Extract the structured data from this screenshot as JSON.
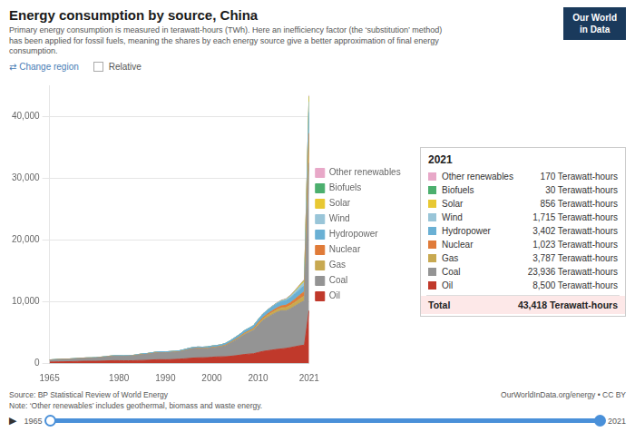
{
  "chart_data": {
    "type": "area",
    "stacked": true,
    "title": "Energy consumption by source, China",
    "subtitle": "Primary energy consumption is measured in terawatt-hours (TWh). Here an inefficiency factor (the ‘substitution’ method)\nhas been applied for fossil fuels, meaning the shares by each energy source give a better approximation of final energy\nconsumption.",
    "logo_text": "Our World\nin Data",
    "controls": [
      "⇄ Change region",
      "Relative"
    ],
    "sources_text": "Source: BP Statistical Review of World Energy",
    "note_text": "Note: ‘Other renewables’ includes geothermal, biomass and waste energy.",
    "owid_text": "OurWorldInData.org/energy • CC BY",
    "slider_labels": [
      "▶",
      "1965",
      "2021"
    ],
    "x": [
      1965,
      1966,
      1967,
      1968,
      1969,
      1970,
      1971,
      1972,
      1973,
      1974,
      1975,
      1976,
      1977,
      1978,
      1979,
      1980,
      1981,
      1982,
      1983,
      1984,
      1985,
      1986,
      1987,
      1988,
      1989,
      1990,
      1991,
      1992,
      1993,
      1994,
      1995,
      1996,
      1997,
      1998,
      1999,
      2000,
      2001,
      2002,
      2003,
      2004,
      2005,
      2006,
      2007,
      2008,
      2009,
      2010,
      2011,
      2012,
      2013,
      2014,
      2015,
      2016,
      2017,
      2018,
      2019,
      2020,
      2021
    ],
    "series": [
      {
        "name": "Oil",
        "color": "#c0392b",
        "values": [
          155,
          170,
          185,
          200,
          215,
          235,
          255,
          280,
          295,
          290,
          290,
          310,
          335,
          360,
          385,
          375,
          370,
          370,
          370,
          400,
          420,
          440,
          490,
          530,
          545,
          535,
          550,
          580,
          625,
          680,
          740,
          800,
          840,
          855,
          865,
          935,
          985,
          1010,
          1015,
          1090,
          1165,
          1270,
          1380,
          1450,
          1500,
          1700,
          1870,
          1990,
          2100,
          2200,
          2280,
          2370,
          2500,
          2650,
          2800,
          2900,
          8500
        ]
      },
      {
        "name": "Coal",
        "color": "#949494",
        "values": [
          300,
          330,
          360,
          370,
          380,
          400,
          430,
          450,
          470,
          480,
          510,
          560,
          610,
          670,
          710,
          720,
          720,
          730,
          760,
          850,
          930,
          960,
          1020,
          1090,
          1130,
          1110,
          1130,
          1140,
          1160,
          1270,
          1380,
          1470,
          1480,
          1430,
          1450,
          1490,
          1520,
          1590,
          1790,
          2100,
          2450,
          2800,
          3200,
          3500,
          3800,
          4400,
          5000,
          5400,
          5700,
          6000,
          6200,
          6100,
          6300,
          6600,
          6900,
          7200,
          23936
        ]
      },
      {
        "name": "Gas",
        "color": "#c8a951",
        "values": [
          5,
          5,
          5,
          5,
          5,
          5,
          6,
          6,
          7,
          7,
          7,
          8,
          8,
          9,
          10,
          10,
          10,
          10,
          11,
          12,
          13,
          13,
          14,
          15,
          15,
          16,
          16,
          17,
          18,
          20,
          22,
          25,
          30,
          35,
          40,
          45,
          50,
          55,
          65,
          80,
          100,
          120,
          145,
          165,
          195,
          230,
          280,
          330,
          380,
          420,
          460,
          510,
          560,
          620,
          700,
          790,
          3787
        ]
      },
      {
        "name": "Nuclear",
        "color": "#e07b39",
        "values": [
          0,
          0,
          0,
          0,
          0,
          0,
          0,
          0,
          0,
          0,
          0,
          0,
          0,
          0,
          0,
          0,
          0,
          0,
          0,
          0,
          0,
          0,
          0,
          0,
          0,
          0,
          14,
          14,
          14,
          14,
          32,
          32,
          32,
          32,
          32,
          43,
          43,
          43,
          54,
          54,
          65,
          65,
          86,
          86,
          86,
          159,
          172,
          205,
          250,
          270,
          310,
          380,
          420,
          500,
          600,
          700,
          1023
        ]
      },
      {
        "name": "Hydropower",
        "color": "#6ab0d4",
        "values": [
          40,
          42,
          44,
          46,
          48,
          50,
          53,
          56,
          59,
          62,
          66,
          70,
          74,
          79,
          84,
          86,
          88,
          92,
          97,
          104,
          113,
          120,
          127,
          138,
          145,
          148,
          155,
          162,
          170,
          180,
          190,
          200,
          210,
          218,
          225,
          235,
          243,
          252,
          270,
          295,
          330,
          360,
          400,
          430,
          460,
          510,
          560,
          590,
          640,
          680,
          710,
          750,
          800,
          850,
          900,
          950,
          3402
        ]
      },
      {
        "name": "Wind",
        "color": "#99c5d8",
        "values": [
          0,
          0,
          0,
          0,
          0,
          0,
          0,
          0,
          0,
          0,
          0,
          0,
          0,
          0,
          0,
          0,
          0,
          0,
          0,
          0,
          0,
          0,
          0,
          0,
          0,
          0,
          0,
          0,
          0,
          0,
          0,
          0,
          0,
          0,
          0,
          0,
          0,
          0,
          0,
          2,
          3,
          4,
          6,
          9,
          13,
          20,
          30,
          50,
          70,
          100,
          130,
          180,
          260,
          360,
          490,
          590,
          1715
        ]
      },
      {
        "name": "Solar",
        "color": "#e8c832",
        "values": [
          0,
          0,
          0,
          0,
          0,
          0,
          0,
          0,
          0,
          0,
          0,
          0,
          0,
          0,
          0,
          0,
          0,
          0,
          0,
          0,
          0,
          0,
          0,
          0,
          0,
          0,
          0,
          0,
          0,
          0,
          0,
          0,
          0,
          0,
          0,
          0,
          0,
          0,
          0,
          0,
          0,
          0,
          0,
          0,
          1,
          1,
          2,
          3,
          5,
          8,
          15,
          30,
          70,
          130,
          200,
          270,
          856
        ]
      },
      {
        "name": "Biofuels",
        "color": "#4caf6e",
        "values": [
          0,
          0,
          0,
          0,
          0,
          0,
          0,
          0,
          0,
          0,
          0,
          0,
          0,
          0,
          0,
          0,
          0,
          0,
          0,
          0,
          0,
          0,
          0,
          0,
          0,
          0,
          0,
          0,
          0,
          0,
          0,
          0,
          0,
          0,
          0,
          0,
          0,
          0,
          0,
          0,
          0,
          0,
          0,
          0,
          0,
          0,
          5,
          6,
          8,
          10,
          12,
          14,
          18,
          22,
          25,
          28,
          30
        ]
      },
      {
        "name": "Other renewables",
        "color": "#e8a8c8",
        "values": [
          10,
          10,
          10,
          10,
          10,
          10,
          10,
          10,
          10,
          10,
          10,
          10,
          10,
          10,
          10,
          10,
          10,
          10,
          10,
          10,
          10,
          10,
          10,
          10,
          10,
          10,
          10,
          10,
          10,
          10,
          10,
          10,
          10,
          10,
          10,
          10,
          10,
          10,
          10,
          10,
          10,
          10,
          10,
          10,
          10,
          20,
          30,
          40,
          50,
          60,
          70,
          80,
          90,
          100,
          110,
          120,
          170
        ]
      }
    ],
    "xlim": [
      1965,
      2021
    ],
    "xticks": [
      1965,
      1980,
      1990,
      2000,
      2010,
      2021
    ],
    "ylim": [
      0,
      45000
    ],
    "yticks": [
      0,
      {
        "value": 10000,
        "label": "10,000"
      },
      {
        "value": 20000,
        "label": "20,000"
      },
      {
        "value": 30000,
        "label": "30,000"
      },
      {
        "value": 40000,
        "label": "40,000"
      }
    ],
    "grid": "y",
    "legend": "right",
    "tooltip": {
      "title": "2021",
      "entries": [
        {
          "label": "Other renewables",
          "value": "170 Terawatt-hours",
          "color": "#e8a8c8"
        },
        {
          "label": "Biofuels",
          "value": "30 Terawatt-hours",
          "color": "#4caf6e"
        },
        {
          "label": "Solar",
          "value": "856 Terawatt-hours",
          "color": "#e8c832"
        },
        {
          "label": "Wind",
          "value": "1,715 Terawatt-hours",
          "color": "#99c5d8"
        },
        {
          "label": "Hydropower",
          "value": "3,402 Terawatt-hours",
          "color": "#6ab0d4"
        },
        {
          "label": "Nuclear",
          "value": "1,023 Terawatt-hours",
          "color": "#e07b39"
        },
        {
          "label": "Gas",
          "value": "3,787 Terawatt-hours",
          "color": "#c8a951"
        },
        {
          "label": "Coal",
          "value": "23,936 Terawatt-hours",
          "color": "#949494"
        },
        {
          "label": "Oil",
          "value": "8,500 Terawatt-hours",
          "color": "#c0392b"
        }
      ],
      "total_label": "Total",
      "total": "43,418 Terawatt-hours"
    }
  }
}
